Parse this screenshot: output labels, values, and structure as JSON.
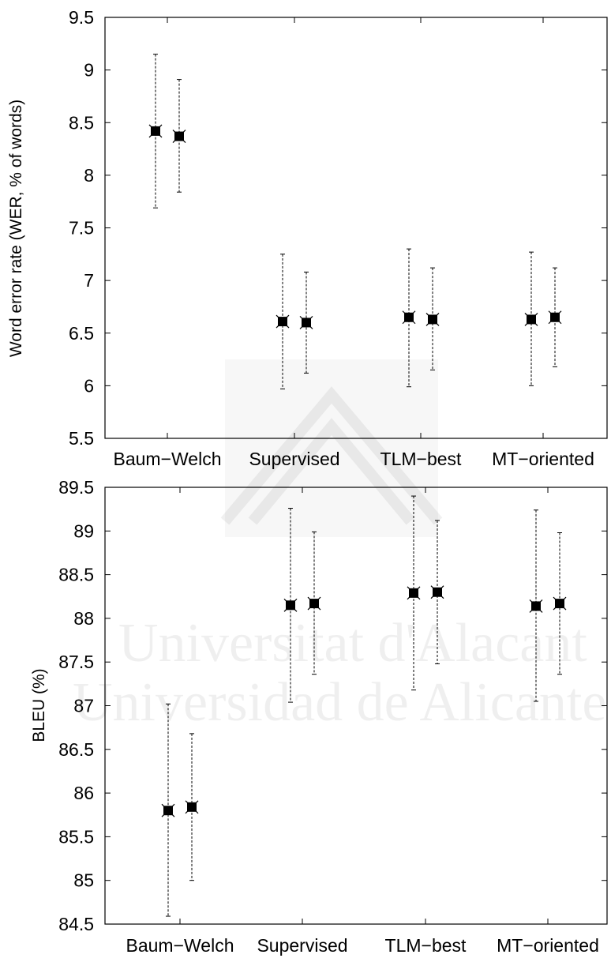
{
  "watermark": {
    "line1": "Universitat d'Alacant",
    "line2": "Universidad de Alicante"
  },
  "chart_data": [
    {
      "type": "scatter",
      "variant": "errorbar",
      "title": "",
      "xlabel": "",
      "ylabel": "Word error rate (WER, % of words)",
      "ylim": [
        5.5,
        9.5
      ],
      "yticks": [
        "5.5",
        "6",
        "6.5",
        "7",
        "7.5",
        "8",
        "8.5",
        "9",
        "9.5"
      ],
      "grid": false,
      "categories": [
        "Baum−Welch",
        "Supervised",
        "TLM−best",
        "MT−oriented"
      ],
      "series": [
        {
          "values": [
            8.42,
            6.61,
            6.65,
            6.63
          ],
          "err_low": [
            7.69,
            5.97,
            5.99,
            6.0
          ],
          "err_high": [
            9.15,
            7.25,
            7.3,
            7.27
          ]
        },
        {
          "values": [
            8.37,
            6.6,
            6.63,
            6.65
          ],
          "err_low": [
            7.84,
            6.12,
            6.15,
            6.18
          ],
          "err_high": [
            8.91,
            7.08,
            7.12,
            7.12
          ]
        }
      ]
    },
    {
      "type": "scatter",
      "variant": "errorbar",
      "title": "",
      "xlabel": "",
      "ylabel": "BLEU (%)",
      "ylim": [
        84.5,
        89.5
      ],
      "yticks": [
        "84.5",
        "85",
        "85.5",
        "86",
        "86.5",
        "87",
        "87.5",
        "88",
        "88.5",
        "89",
        "89.5"
      ],
      "grid": false,
      "categories": [
        "Baum−Welch",
        "Supervised",
        "TLM−best",
        "MT−oriented"
      ],
      "series": [
        {
          "values": [
            85.8,
            88.15,
            88.29,
            88.14
          ],
          "err_low": [
            84.59,
            87.04,
            87.18,
            87.05
          ],
          "err_high": [
            87.02,
            89.26,
            89.4,
            89.24
          ]
        },
        {
          "values": [
            85.84,
            88.17,
            88.3,
            88.17
          ],
          "err_low": [
            85.0,
            87.36,
            87.48,
            87.36
          ],
          "err_high": [
            86.68,
            88.99,
            89.12,
            88.98
          ]
        }
      ]
    }
  ]
}
